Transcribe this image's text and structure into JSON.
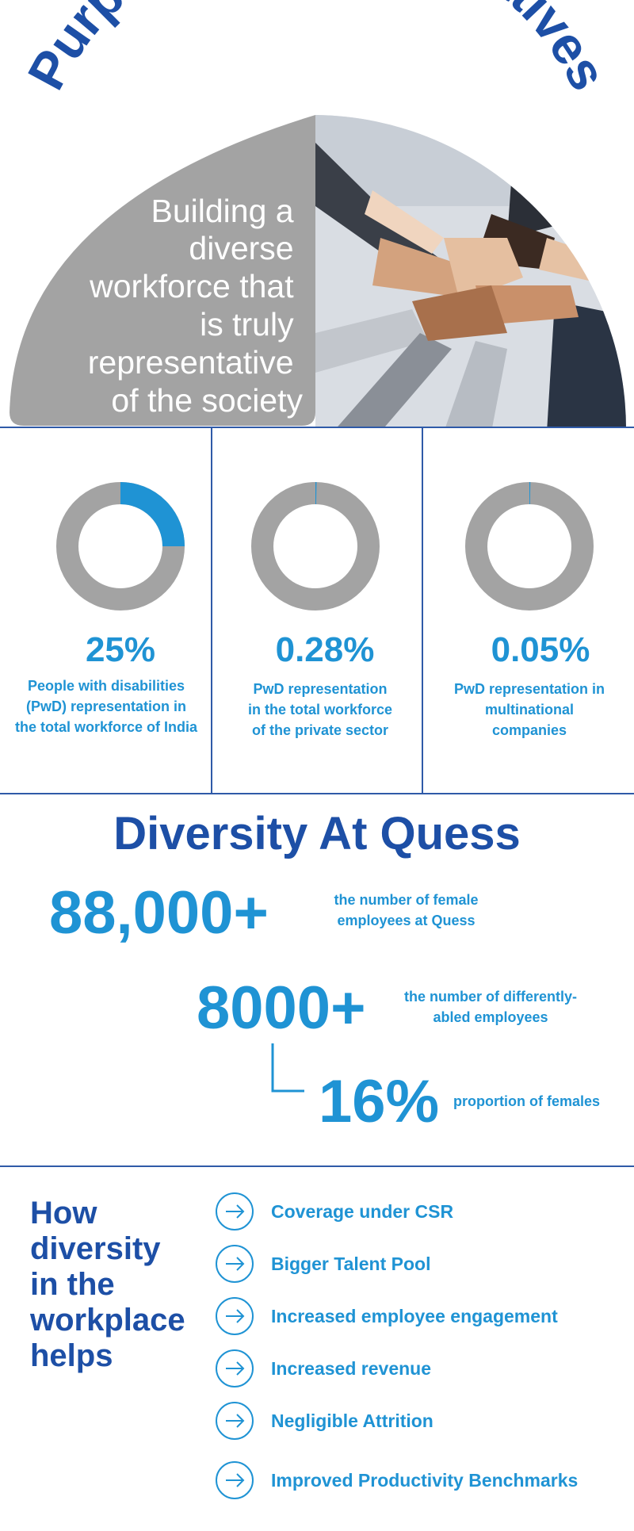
{
  "header": {
    "title": "Purpose of DE&I initiatives",
    "tagline_lines": [
      "Building a",
      "diverse",
      "workforce that",
      "is truly",
      "representative",
      "of the society"
    ]
  },
  "stats": [
    {
      "percent": "25%",
      "fraction": 0.25,
      "caption_lines": [
        "People with disabilities",
        "(PwD) representation in",
        "the total workforce of India"
      ]
    },
    {
      "percent": "0.28%",
      "fraction": 0.0028,
      "caption_lines": [
        "PwD representation",
        "in the total workforce",
        "of the private sector"
      ]
    },
    {
      "percent": "0.05%",
      "fraction": 0.0005,
      "caption_lines": [
        "PwD representation in",
        "multinational",
        "companies"
      ]
    }
  ],
  "diversity": {
    "title": "Diversity At Quess",
    "female_count": "88,000+",
    "female_desc_lines": [
      "the number of female",
      "employees at Quess"
    ],
    "disabled_count": "8000+",
    "disabled_desc_lines": [
      "the number of differently-",
      "abled employees"
    ],
    "female_pct": "16%",
    "female_pct_desc": "proportion of females"
  },
  "benefits": {
    "title_lines": [
      "How",
      "diversity",
      "in the",
      "workplace",
      "helps"
    ],
    "items": [
      "Coverage under CSR",
      "Bigger Talent Pool",
      "Increased employee engagement",
      "Increased revenue",
      "Negligible Attrition",
      "Improved Productivity Benchmarks"
    ]
  },
  "colors": {
    "accent": "#1f93d4",
    "navy": "#1d4fa6",
    "grey": "#a3a3a3",
    "divider": "#2f5aa8"
  },
  "icons": {
    "benefit": "arrow-right-icon",
    "hero": "hands-together-photo"
  }
}
